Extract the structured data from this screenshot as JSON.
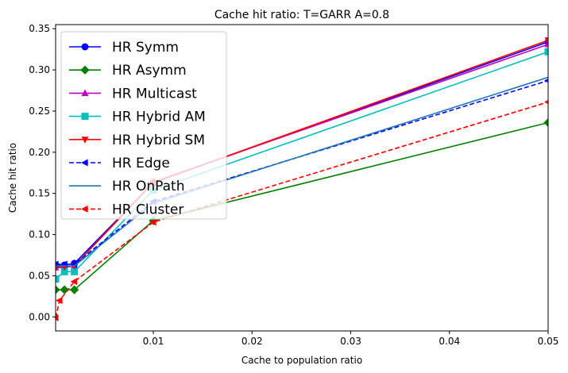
{
  "chart_data": {
    "type": "line",
    "title": "Cache hit ratio: T=GARR A=0.8",
    "xlabel": "Cache to population ratio",
    "ylabel": "Cache hit ratio",
    "xlim": [
      0.0001,
      0.05
    ],
    "ylim": [
      -0.017,
      0.355
    ],
    "x_ticks": [
      0.01,
      0.02,
      0.03,
      0.04,
      0.05
    ],
    "x_tick_labels": [
      "0.01",
      "0.02",
      "0.03",
      "0.04",
      "0.05"
    ],
    "y_ticks": [
      0.0,
      0.05,
      0.1,
      0.15,
      0.2,
      0.25,
      0.3,
      0.35
    ],
    "y_tick_labels": [
      "0.00",
      "0.05",
      "0.10",
      "0.15",
      "0.20",
      "0.25",
      "0.30",
      "0.35"
    ],
    "grid": false,
    "legend_position": "upper-left",
    "series": [
      {
        "name": "HR Symm",
        "color": "#0000ff",
        "marker": "circle",
        "dash": "solid",
        "x": [
          0.0001,
          0.001,
          0.002,
          0.01,
          0.05
        ],
        "y": [
          0.063,
          0.063,
          0.065,
          0.163,
          0.334
        ]
      },
      {
        "name": "HR Asymm",
        "color": "#008000",
        "marker": "diamond",
        "dash": "solid",
        "x": [
          0.0001,
          0.001,
          0.002,
          0.01,
          0.05
        ],
        "y": [
          0.033,
          0.033,
          0.033,
          0.117,
          0.236
        ]
      },
      {
        "name": "HR Multicast",
        "color": "#bf00bf",
        "marker": "triangle-up",
        "dash": "solid",
        "x": [
          0.0001,
          0.001,
          0.002,
          0.01,
          0.05
        ],
        "y": [
          0.06,
          0.06,
          0.062,
          0.164,
          0.331
        ]
      },
      {
        "name": "HR Hybrid AM",
        "color": "#00bfbf",
        "marker": "square",
        "dash": "solid",
        "x": [
          0.0001,
          0.001,
          0.002,
          0.01,
          0.05
        ],
        "y": [
          0.046,
          0.055,
          0.055,
          0.154,
          0.322
        ]
      },
      {
        "name": "HR Hybrid SM",
        "color": "#ff0000",
        "marker": "triangle-down",
        "dash": "solid",
        "x": [
          0.0001,
          0.001,
          0.002,
          0.01,
          0.05
        ],
        "y": [
          0.061,
          0.061,
          0.062,
          0.163,
          0.336
        ]
      },
      {
        "name": "HR Edge",
        "color": "#0000ff",
        "marker": "triangle-left",
        "dash": "dashed",
        "x": [
          0.0001,
          0.001,
          0.002,
          0.01,
          0.05
        ],
        "y": [
          0.064,
          0.064,
          0.064,
          0.14,
          0.287
        ]
      },
      {
        "name": "HR OnPath",
        "color": "#1f77b4",
        "marker": "none",
        "dash": "solid",
        "x": [
          0.0001,
          0.001,
          0.002,
          0.01,
          0.05
        ],
        "y": [
          0.062,
          0.062,
          0.062,
          0.138,
          0.291
        ]
      },
      {
        "name": "HR Cluster",
        "color": "#ff0000",
        "marker": "triangle-left",
        "dash": "dashed",
        "x": [
          0.0001,
          0.0005,
          0.002,
          0.01,
          0.05
        ],
        "y": [
          -0.001,
          0.02,
          0.043,
          0.115,
          0.261
        ]
      }
    ]
  }
}
